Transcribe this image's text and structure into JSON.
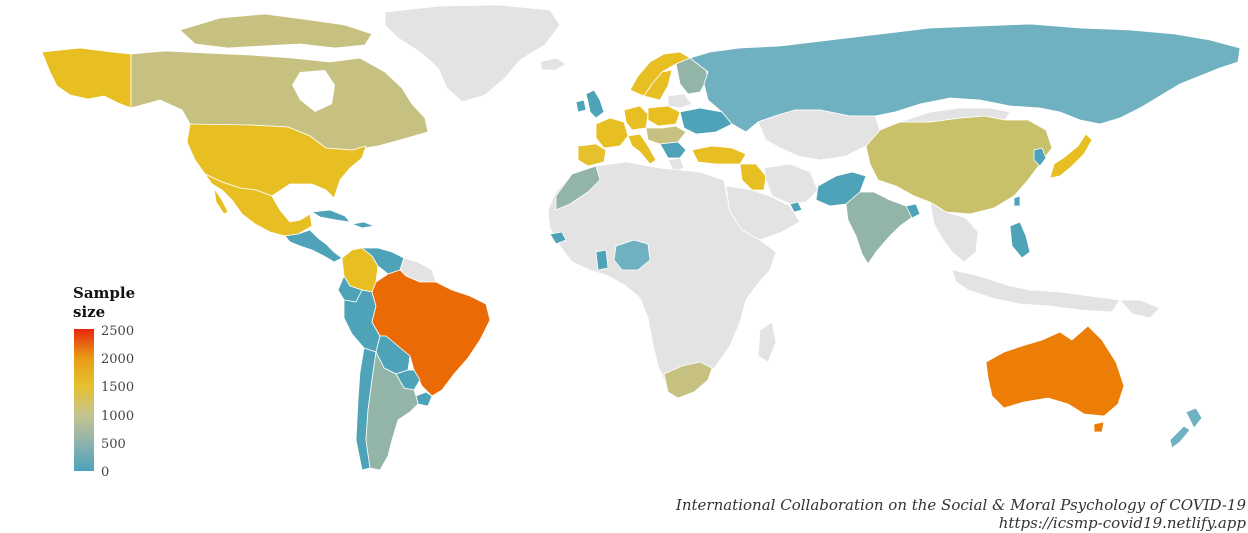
{
  "legend": {
    "title_line1": "Sample",
    "title_line2": "size",
    "ticks": [
      "2500",
      "2000",
      "1500",
      "1000",
      "500",
      "0"
    ],
    "colors": [
      "#e8260c",
      "#e99a14",
      "#e6c12e",
      "#c7c48d",
      "#8fb3ad",
      "#4aa3bb"
    ]
  },
  "caption": {
    "line1": "International Collaboration on the Social & Moral Psychology of COVID-19",
    "line2": "https://icsmp-covid19.netlify.app"
  },
  "colors": {
    "no_data": "#e3e3e3",
    "orange_high": "#ea6a06",
    "orange": "#ec7d07",
    "gold": "#e7bf22",
    "khaki": "#c6c181",
    "sage": "#93b5a7",
    "teal": "#6fb1c0",
    "blue": "#4ea3b9"
  }
}
